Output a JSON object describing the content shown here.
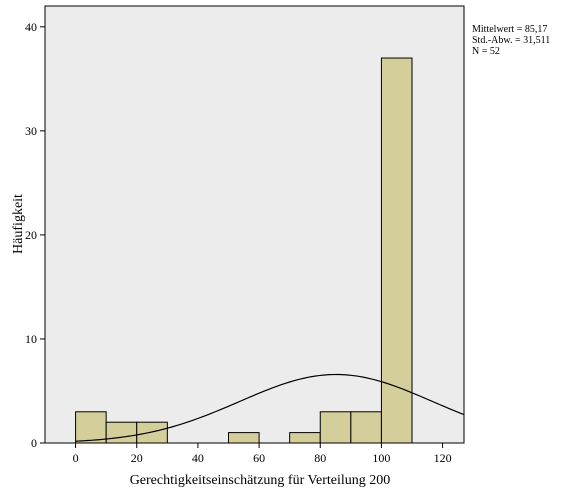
{
  "chart_data": {
    "type": "bar",
    "bin_width": 10,
    "bins": [
      {
        "start": 0,
        "end": 10,
        "count": 3
      },
      {
        "start": 10,
        "end": 20,
        "count": 2
      },
      {
        "start": 20,
        "end": 30,
        "count": 2
      },
      {
        "start": 50,
        "end": 60,
        "count": 1
      },
      {
        "start": 70,
        "end": 80,
        "count": 1
      },
      {
        "start": 80,
        "end": 90,
        "count": 3
      },
      {
        "start": 90,
        "end": 100,
        "count": 3
      },
      {
        "start": 100,
        "end": 110,
        "count": 37
      }
    ],
    "xlabel": "Gerechtigkeitseinschätzung für Verteilung 200",
    "ylabel": "Häufigkeit",
    "xlim": [
      -10,
      127
    ],
    "ylim": [
      0,
      42
    ],
    "x_ticks": [
      "0",
      "20",
      "40",
      "60",
      "80",
      "100",
      "120"
    ],
    "y_ticks": [
      "0",
      "10",
      "20",
      "30",
      "40"
    ],
    "normal_curve": {
      "mean": 85.17,
      "sd": 31.511,
      "n": 52
    },
    "stats_lines": [
      "Mittelwert = 85,17",
      "Std.-Abw. = 31,511",
      "N = 52"
    ],
    "legend_placement": "top-right-outside",
    "grid": false,
    "colors": {
      "plot_bg": "#ececec",
      "bar_fill": "#d3ce9a",
      "bar_stroke": "#000000",
      "curve": "#000000"
    }
  }
}
